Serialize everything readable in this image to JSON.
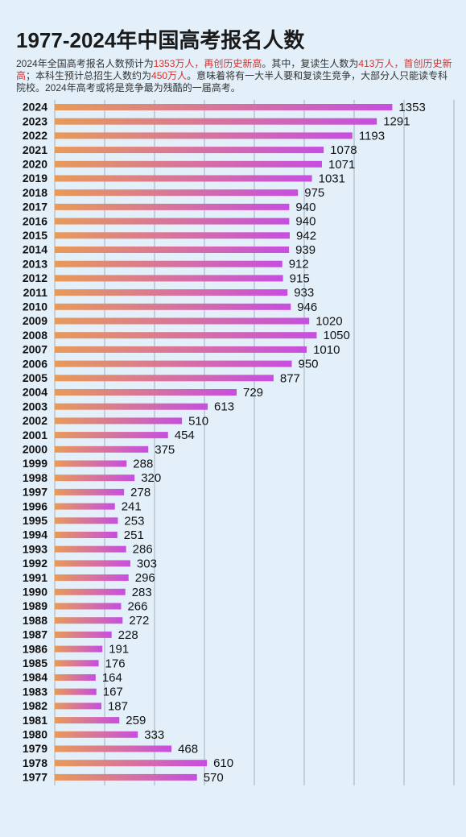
{
  "chart_data": {
    "type": "bar",
    "orientation": "horizontal",
    "title": "1977-2024年中国高考报名人数",
    "subtitle": [
      {
        "text": "2024年全国高考报名人数预计为",
        "highlight": false
      },
      {
        "text": "1353万人，再创历史新高",
        "highlight": true
      },
      {
        "text": "。其中，复读生人数为",
        "highlight": false
      },
      {
        "text": "413万人，首创历史新高",
        "highlight": true
      },
      {
        "text": "；本科生预计总招生人数约为",
        "highlight": false
      },
      {
        "text": "450万人",
        "highlight": true
      },
      {
        "text": "。意味着将有一大半人要和复读生竞争，大部分人只能读专科院校。2024年高考或将是竞争最为残酷的一届高考。",
        "highlight": false
      }
    ],
    "categories": [
      "2024",
      "2023",
      "2022",
      "2021",
      "2020",
      "2019",
      "2018",
      "2017",
      "2016",
      "2015",
      "2014",
      "2013",
      "2012",
      "2011",
      "2010",
      "2009",
      "2008",
      "2007",
      "2006",
      "2005",
      "2004",
      "2003",
      "2002",
      "2001",
      "2000",
      "1999",
      "1998",
      "1997",
      "1996",
      "1995",
      "1994",
      "1993",
      "1992",
      "1991",
      "1990",
      "1989",
      "1988",
      "1987",
      "1986",
      "1985",
      "1984",
      "1983",
      "1982",
      "1981",
      "1980",
      "1979",
      "1978",
      "1977"
    ],
    "values": [
      1353,
      1291,
      1193,
      1078,
      1071,
      1031,
      975,
      940,
      940,
      942,
      939,
      912,
      915,
      933,
      946,
      1020,
      1050,
      1010,
      950,
      877,
      729,
      613,
      510,
      454,
      375,
      288,
      320,
      278,
      241,
      253,
      251,
      286,
      303,
      296,
      283,
      266,
      272,
      228,
      191,
      176,
      164,
      167,
      187,
      259,
      333,
      468,
      610,
      570
    ],
    "colors": [
      "#e89a58",
      "#c74ee0"
    ],
    "xlim": [
      0,
      1600
    ],
    "xticks": [
      0,
      200,
      400,
      600,
      800,
      1000,
      1200,
      1400,
      1600
    ],
    "grid": true
  }
}
